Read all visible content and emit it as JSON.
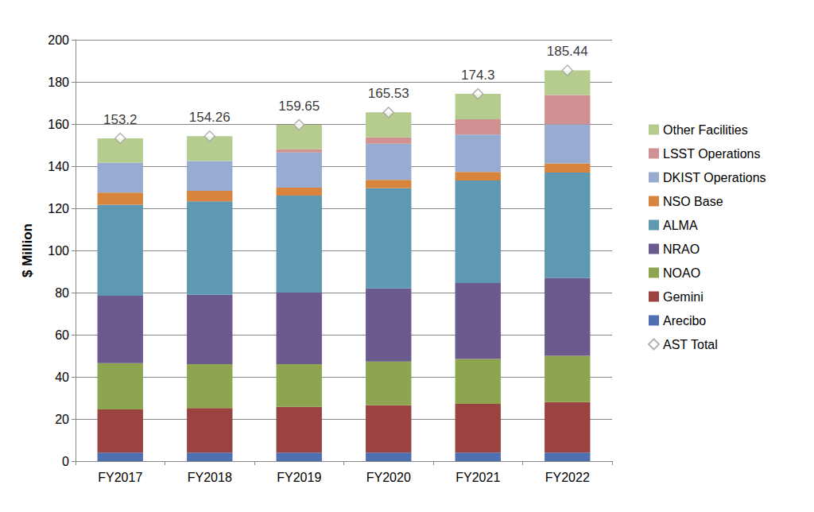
{
  "chart_data": {
    "type": "bar",
    "stacked": true,
    "grid": true,
    "legend": "right",
    "y_label": "$ Million",
    "categories": [
      "FY2017",
      "FY2018",
      "FY2019",
      "FY2020",
      "FY2021",
      "FY2022"
    ],
    "ylim": [
      0,
      200
    ],
    "yticks": [
      0,
      20,
      40,
      60,
      80,
      100,
      120,
      140,
      160,
      180,
      200
    ],
    "series": [
      {
        "name": "Arecibo",
        "color": "#4f6fb0",
        "values": [
          4.1,
          4.1,
          4.1,
          4.1,
          4.1,
          4.1
        ]
      },
      {
        "name": "Gemini",
        "color": "#9b4340",
        "values": [
          20.4,
          21.1,
          21.7,
          22.4,
          23.1,
          23.9
        ]
      },
      {
        "name": "NOAO",
        "color": "#8ea550",
        "values": [
          22.0,
          20.8,
          20.2,
          20.8,
          21.3,
          22.0
        ]
      },
      {
        "name": "NRAO",
        "color": "#6a5a8e",
        "values": [
          32.0,
          33.0,
          34.0,
          34.7,
          36.0,
          37.0
        ]
      },
      {
        "name": "ALMA",
        "color": "#5e98b1",
        "values": [
          43.2,
          44.3,
          46.0,
          47.5,
          48.7,
          50.0
        ]
      },
      {
        "name": "NSO Base",
        "color": "#d9843c",
        "values": [
          5.8,
          5.0,
          3.8,
          4.0,
          4.1,
          4.3
        ]
      },
      {
        "name": "DKIST Operations",
        "color": "#98acd2",
        "values": [
          14.2,
          14.2,
          16.7,
          17.2,
          17.7,
          18.5
        ]
      },
      {
        "name": "LSST Operations",
        "color": "#cf9191",
        "values": [
          0,
          0,
          1.5,
          3.0,
          7.3,
          14.0
        ]
      },
      {
        "name": "Other Facilities",
        "color": "#b5cc8e",
        "values": [
          11.5,
          11.76,
          11.65,
          11.83,
          12.0,
          11.64
        ]
      },
      {
        "name": "AST Total",
        "type": "scatter",
        "marker": "diamond",
        "color": "#a0a0a0",
        "data_labels": true,
        "values": [
          153.2,
          154.26,
          159.65,
          165.53,
          174.3,
          185.44
        ]
      }
    ]
  }
}
